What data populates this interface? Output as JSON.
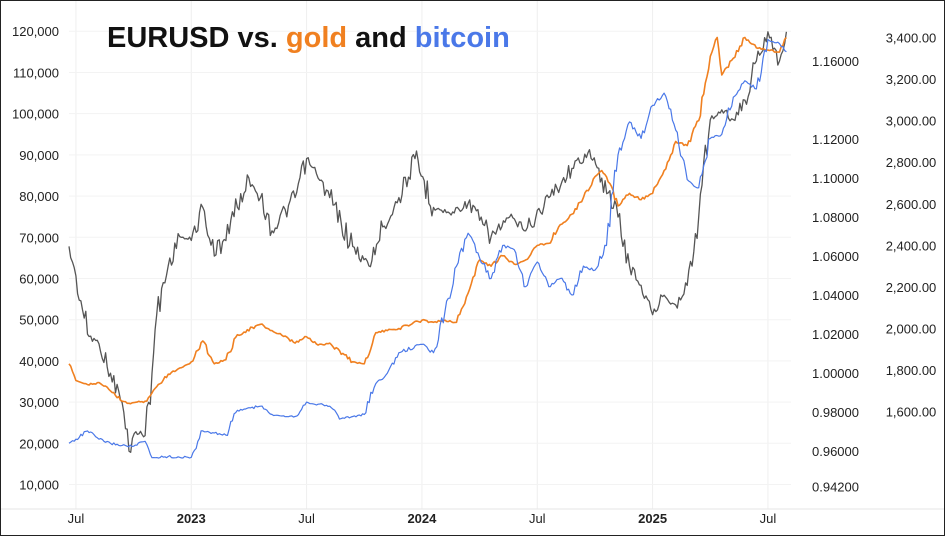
{
  "chart_data": {
    "type": "line",
    "title": {
      "part1": "EURUSD vs. ",
      "part2": "gold",
      "part3": " and ",
      "part4": "bitcoin"
    },
    "colors": {
      "eurusd": "#555555",
      "gold": "#f08020",
      "bitcoin": "#4a78e8",
      "title_main": "#111111",
      "axis_text": "#222222"
    },
    "x_ticks": [
      {
        "label": "Jul",
        "t": 2022.5,
        "bold": false
      },
      {
        "label": "2023",
        "t": 2023.0,
        "bold": true
      },
      {
        "label": "Jul",
        "t": 2023.5,
        "bold": false
      },
      {
        "label": "2024",
        "t": 2024.0,
        "bold": true
      },
      {
        "label": "Jul",
        "t": 2024.5,
        "bold": false
      },
      {
        "label": "2025",
        "t": 2025.0,
        "bold": true
      },
      {
        "label": "Jul",
        "t": 2025.5,
        "bold": false
      }
    ],
    "x_range": [
      2022.47,
      2025.6
    ],
    "axes": {
      "bitcoin": {
        "range": [
          6000,
          122000
        ],
        "ticks": [
          "10,000",
          "20,000",
          "30,000",
          "40,000",
          "50,000",
          "60,000",
          "70,000",
          "80,000",
          "90,000",
          "100,000",
          "110,000",
          "120,000"
        ]
      },
      "eurusd": {
        "range": [
          0.9345,
          1.1795
        ],
        "ticks": [
          "0.94200",
          "0.96000",
          "0.98000",
          "1.00000",
          "1.02000",
          "1.04000",
          "1.06000",
          "1.08000",
          "1.10000",
          "1.12000",
          "1.16000"
        ]
      },
      "gold": {
        "range": [
          1170,
          3470
        ],
        "ticks": [
          "1,600.00",
          "1,800.00",
          "2,000.00",
          "2,200.00",
          "2,400.00",
          "2,600.00",
          "2,800.00",
          "3,000.00",
          "3,200.00",
          "3,400.00"
        ]
      }
    },
    "series": [
      {
        "name": "EURUSD",
        "axis": "eurusd",
        "points": [
          [
            2022.47,
            1.065
          ],
          [
            2022.5,
            1.05
          ],
          [
            2022.55,
            1.02
          ],
          [
            2022.6,
            1.015
          ],
          [
            2022.65,
            1.0
          ],
          [
            2022.7,
            0.985
          ],
          [
            2022.73,
            0.96
          ],
          [
            2022.76,
            0.97
          ],
          [
            2022.8,
            0.968
          ],
          [
            2022.83,
            1.0
          ],
          [
            2022.85,
            1.03
          ],
          [
            2022.9,
            1.055
          ],
          [
            2022.95,
            1.07
          ],
          [
            2023.0,
            1.068
          ],
          [
            2023.05,
            1.085
          ],
          [
            2023.1,
            1.06
          ],
          [
            2023.2,
            1.085
          ],
          [
            2023.25,
            1.1
          ],
          [
            2023.3,
            1.09
          ],
          [
            2023.35,
            1.073
          ],
          [
            2023.45,
            1.09
          ],
          [
            2023.5,
            1.11
          ],
          [
            2023.55,
            1.1
          ],
          [
            2023.6,
            1.09
          ],
          [
            2023.7,
            1.065
          ],
          [
            2023.77,
            1.055
          ],
          [
            2023.83,
            1.075
          ],
          [
            2023.9,
            1.09
          ],
          [
            2023.97,
            1.11
          ],
          [
            2024.05,
            1.085
          ],
          [
            2024.12,
            1.082
          ],
          [
            2024.2,
            1.087
          ],
          [
            2024.3,
            1.07
          ],
          [
            2024.38,
            1.08
          ],
          [
            2024.45,
            1.073
          ],
          [
            2024.55,
            1.09
          ],
          [
            2024.65,
            1.105
          ],
          [
            2024.72,
            1.113
          ],
          [
            2024.78,
            1.1
          ],
          [
            2024.85,
            1.08
          ],
          [
            2024.9,
            1.055
          ],
          [
            2024.95,
            1.045
          ],
          [
            2025.0,
            1.03
          ],
          [
            2025.05,
            1.04
          ],
          [
            2025.1,
            1.035
          ],
          [
            2025.15,
            1.045
          ],
          [
            2025.2,
            1.08
          ],
          [
            2025.25,
            1.13
          ],
          [
            2025.3,
            1.135
          ],
          [
            2025.35,
            1.13
          ],
          [
            2025.4,
            1.14
          ],
          [
            2025.45,
            1.16
          ],
          [
            2025.5,
            1.175
          ],
          [
            2025.55,
            1.16
          ],
          [
            2025.58,
            1.175
          ]
        ]
      },
      {
        "name": "Gold",
        "axis": "gold",
        "points": [
          [
            2022.47,
            1830
          ],
          [
            2022.5,
            1750
          ],
          [
            2022.55,
            1730
          ],
          [
            2022.6,
            1740
          ],
          [
            2022.65,
            1700
          ],
          [
            2022.7,
            1650
          ],
          [
            2022.73,
            1640
          ],
          [
            2022.8,
            1650
          ],
          [
            2022.85,
            1720
          ],
          [
            2022.9,
            1780
          ],
          [
            2022.95,
            1810
          ],
          [
            2023.0,
            1840
          ],
          [
            2023.05,
            1940
          ],
          [
            2023.1,
            1830
          ],
          [
            2023.15,
            1850
          ],
          [
            2023.2,
            1970
          ],
          [
            2023.3,
            2020
          ],
          [
            2023.35,
            1990
          ],
          [
            2023.45,
            1930
          ],
          [
            2023.5,
            1960
          ],
          [
            2023.55,
            1920
          ],
          [
            2023.6,
            1930
          ],
          [
            2023.7,
            1840
          ],
          [
            2023.75,
            1830
          ],
          [
            2023.8,
            1980
          ],
          [
            2023.85,
            1990
          ],
          [
            2023.9,
            2000
          ],
          [
            2024.0,
            2040
          ],
          [
            2024.05,
            2030
          ],
          [
            2024.1,
            2040
          ],
          [
            2024.15,
            2030
          ],
          [
            2024.2,
            2170
          ],
          [
            2024.25,
            2330
          ],
          [
            2024.3,
            2300
          ],
          [
            2024.35,
            2350
          ],
          [
            2024.4,
            2310
          ],
          [
            2024.45,
            2330
          ],
          [
            2024.5,
            2400
          ],
          [
            2024.55,
            2410
          ],
          [
            2024.6,
            2500
          ],
          [
            2024.65,
            2550
          ],
          [
            2024.7,
            2630
          ],
          [
            2024.75,
            2730
          ],
          [
            2024.78,
            2760
          ],
          [
            2024.8,
            2730
          ],
          [
            2024.85,
            2590
          ],
          [
            2024.9,
            2650
          ],
          [
            2024.95,
            2620
          ],
          [
            2025.0,
            2650
          ],
          [
            2025.05,
            2760
          ],
          [
            2025.1,
            2900
          ],
          [
            2025.15,
            2880
          ],
          [
            2025.2,
            3000
          ],
          [
            2025.25,
            3310
          ],
          [
            2025.28,
            3400
          ],
          [
            2025.3,
            3220
          ],
          [
            2025.35,
            3300
          ],
          [
            2025.4,
            3400
          ],
          [
            2025.45,
            3350
          ],
          [
            2025.5,
            3340
          ],
          [
            2025.55,
            3330
          ],
          [
            2025.58,
            3400
          ]
        ]
      },
      {
        "name": "Bitcoin",
        "axis": "bitcoin",
        "points": [
          [
            2022.47,
            20000
          ],
          [
            2022.5,
            21000
          ],
          [
            2022.55,
            23000
          ],
          [
            2022.6,
            21000
          ],
          [
            2022.65,
            20000
          ],
          [
            2022.7,
            19500
          ],
          [
            2022.75,
            19300
          ],
          [
            2022.8,
            20500
          ],
          [
            2022.83,
            16500
          ],
          [
            2022.9,
            16800
          ],
          [
            2022.95,
            16600
          ],
          [
            2023.0,
            16600
          ],
          [
            2023.05,
            23000
          ],
          [
            2023.1,
            22500
          ],
          [
            2023.15,
            22000
          ],
          [
            2023.2,
            28000
          ],
          [
            2023.3,
            29000
          ],
          [
            2023.35,
            27000
          ],
          [
            2023.45,
            26500
          ],
          [
            2023.5,
            30000
          ],
          [
            2023.55,
            29500
          ],
          [
            2023.6,
            29000
          ],
          [
            2023.65,
            26000
          ],
          [
            2023.7,
            26500
          ],
          [
            2023.75,
            27000
          ],
          [
            2023.8,
            34500
          ],
          [
            2023.85,
            37000
          ],
          [
            2023.9,
            42000
          ],
          [
            2024.0,
            44000
          ],
          [
            2024.05,
            42000
          ],
          [
            2024.1,
            52000
          ],
          [
            2024.15,
            63000
          ],
          [
            2024.2,
            71000
          ],
          [
            2024.25,
            65000
          ],
          [
            2024.3,
            60000
          ],
          [
            2024.35,
            68000
          ],
          [
            2024.4,
            67000
          ],
          [
            2024.45,
            58000
          ],
          [
            2024.5,
            64000
          ],
          [
            2024.55,
            58000
          ],
          [
            2024.6,
            60000
          ],
          [
            2024.65,
            56000
          ],
          [
            2024.7,
            63000
          ],
          [
            2024.75,
            62000
          ],
          [
            2024.8,
            68000
          ],
          [
            2024.85,
            90000
          ],
          [
            2024.9,
            98000
          ],
          [
            2024.95,
            94000
          ],
          [
            2025.0,
            102000
          ],
          [
            2025.05,
            105000
          ],
          [
            2025.1,
            96000
          ],
          [
            2025.15,
            84000
          ],
          [
            2025.2,
            82000
          ],
          [
            2025.25,
            94000
          ],
          [
            2025.3,
            95000
          ],
          [
            2025.35,
            104000
          ],
          [
            2025.4,
            108000
          ],
          [
            2025.45,
            106000
          ],
          [
            2025.5,
            118000
          ],
          [
            2025.55,
            117000
          ],
          [
            2025.58,
            115000
          ]
        ]
      }
    ]
  }
}
